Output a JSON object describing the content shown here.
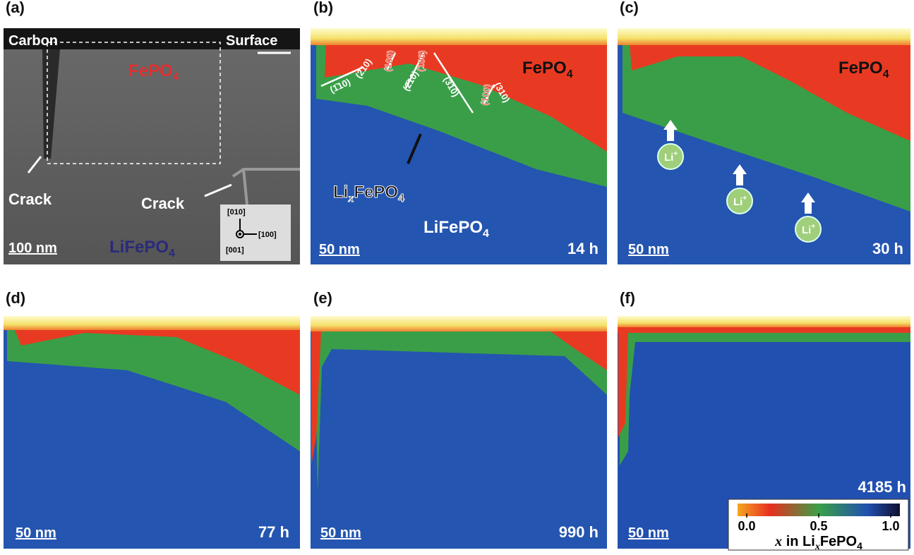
{
  "panels": [
    {
      "label": "(a)",
      "carbon": "Carbon",
      "surface": "Surface",
      "fepo4": {
        "main": "FePO",
        "sub": "4"
      },
      "crack_left": "Crack",
      "crack_right": "Crack",
      "scale": "100 nm",
      "lifepo4": {
        "main": "LiFePO",
        "sub": "4"
      },
      "axes": {
        "up": "[010]",
        "right": "[100]",
        "out": "[001]"
      }
    },
    {
      "label": "(b)",
      "fepo4": {
        "main": "FePO",
        "sub": "4"
      },
      "facets": [
        "(1̄10)",
        "(2̄10)",
        "(100)",
        "(2̄10)",
        "(100)",
        "(310)",
        "(100)",
        "(310)"
      ],
      "lixfepo4": {
        "a": "Li",
        "x": "x",
        "b": "FePO",
        "sub": "4"
      },
      "lifepo4": {
        "main": "LiFePO",
        "sub": "4"
      },
      "scale": "50 nm",
      "time": "14 h"
    },
    {
      "label": "(c)",
      "fepo4": {
        "main": "FePO",
        "sub": "4"
      },
      "ion": {
        "main": "Li",
        "sup": "+"
      },
      "scale": "50 nm",
      "time": "30 h"
    },
    {
      "label": "(d)",
      "scale": "50 nm",
      "time": "77 h"
    },
    {
      "label": "(e)",
      "scale": "50 nm",
      "time": "990 h"
    },
    {
      "label": "(f)",
      "scale": "50 nm",
      "time": "4185 h"
    }
  ],
  "colorbar": {
    "lim": [
      0,
      1
    ],
    "ticks": [
      {
        "value": 0,
        "label": "0.0"
      },
      {
        "value": 0.5,
        "label": "0.5"
      },
      {
        "value": 1,
        "label": "1.0"
      }
    ],
    "title": {
      "x": "x",
      "in": " in Li",
      "xs": "x",
      "main": "FePO",
      "sub": "4"
    }
  }
}
